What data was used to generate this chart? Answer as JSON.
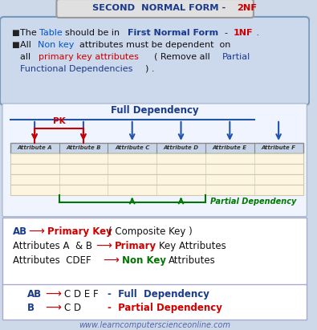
{
  "bg_color": "#cdd8e8",
  "title_text_blue": "SECOND  NORMAL FORM - ",
  "title_text_red": "2NF",
  "title_blue": "#1a3a8c",
  "title_red": "#cc0000",
  "title_box_color": "#e0e0e0",
  "title_box_edge": "#999999",
  "bullet_box_color": "#ccd8ec",
  "bullet_box_edge": "#7799bb",
  "table_box_color": "#f0f4ff",
  "table_box_edge": "#aabbcc",
  "s3_box_color": "#ffffff",
  "s3_box_edge": "#aaaacc",
  "s4_box_color": "#ffffff",
  "s4_box_edge": "#aaaacc",
  "full_dep_color": "#1a3a8c",
  "partial_dep_color": "#007700",
  "pk_arrow_color": "#cc0000",
  "full_arrow_color": "#2255aa",
  "header_bg": "#c8d4e8",
  "row_bg": "#fdf5e0",
  "columns": [
    "Attribute A",
    "Attribute B",
    "Attribute C",
    "Attribute D",
    "Attribute E",
    "Attribute F"
  ],
  "col_letter_colors": [
    "#cc0000",
    "#cc0000",
    "#cc6600",
    "#cc6600",
    "#cc6600",
    "#cc6600"
  ],
  "num_data_rows": 4,
  "footer": "www.learncomputerscienceonline.com",
  "footer_color": "#5566aa"
}
